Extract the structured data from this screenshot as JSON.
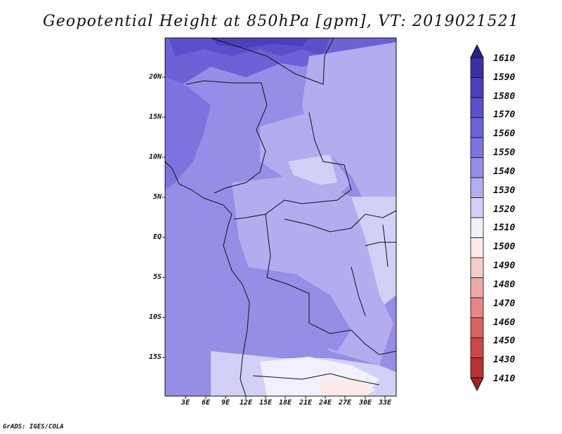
{
  "title": "Geopotential Height at 850hPa [gpm], VT: 2019021521",
  "credit": "GrADS: IGES/COLA",
  "lat_labels": [
    "20N",
    "15N",
    "10N",
    "5N",
    "EQ",
    "5S",
    "10S",
    "15S"
  ],
  "lon_labels": [
    "3E",
    "6E",
    "9E",
    "12E",
    "15E",
    "18E",
    "21E",
    "24E",
    "27E",
    "30E",
    "33E"
  ],
  "colorbar": {
    "labels": [
      "1610",
      "1590",
      "1580",
      "1570",
      "1560",
      "1550",
      "1540",
      "1530",
      "1520",
      "1510",
      "1500",
      "1490",
      "1480",
      "1470",
      "1460",
      "1450",
      "1430",
      "1410"
    ],
    "colors": [
      "#2a1f8c",
      "#3a2fa5",
      "#4a3fbe",
      "#5a50cc",
      "#6a62d6",
      "#7c74de",
      "#948ee6",
      "#b1adef",
      "#d2d0f6",
      "#f1f0fc",
      "#fde9e9",
      "#f7cccc",
      "#eeaaaa",
      "#e48686",
      "#d86262",
      "#cc4646",
      "#bb3030",
      "#a72121"
    ]
  }
}
